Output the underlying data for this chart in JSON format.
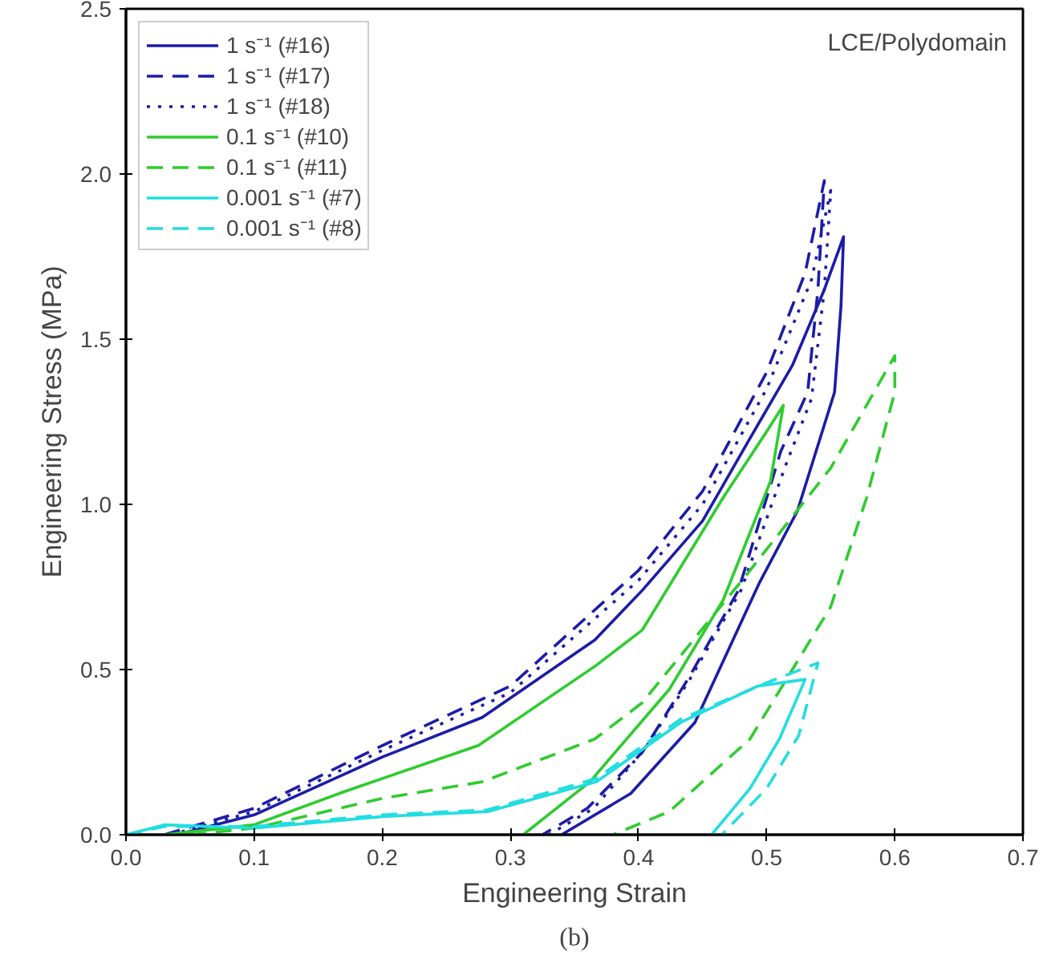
{
  "chart_data": {
    "type": "line",
    "xlabel": "Engineering Strain",
    "ylabel": "Engineering Stress (MPa)",
    "xlim": [
      0,
      0.7
    ],
    "ylim": [
      0,
      2.5
    ],
    "xticks": [
      {
        "value": 0,
        "label": "0.0"
      },
      0.1,
      0.2,
      0.3,
      0.4,
      0.5,
      0.6,
      0.7
    ],
    "yticks": [
      {
        "value": 0,
        "label": "0.0"
      },
      0.5,
      {
        "value": 1,
        "label": "1.0"
      },
      1.5,
      {
        "value": 2,
        "label": "2.0"
      },
      2.5
    ],
    "grid": false,
    "legend": "top left",
    "annotations": [
      "LCE/Polydomain",
      "(b)"
    ],
    "series": [
      {
        "name": "1 s⁻¹ (#16)",
        "color": "#1c1ca8",
        "line_style": "solid",
        "x": [
          0.04,
          0.1,
          0.2,
          0.278,
          0.366,
          0.403,
          0.45,
          0.487,
          0.52,
          0.545,
          0.56,
          0.558,
          0.553,
          0.524,
          0.494,
          0.444,
          0.394,
          0.34
        ],
        "values": [
          0.0,
          0.06,
          0.235,
          0.355,
          0.59,
          0.74,
          0.95,
          1.2,
          1.42,
          1.65,
          1.81,
          1.6,
          1.34,
          0.98,
          0.76,
          0.34,
          0.125,
          0.0
        ]
      },
      {
        "name": "1 s⁻¹ (#17)",
        "color": "#1c1ca8",
        "line_style": "dashed",
        "x": [
          0.03,
          0.1,
          0.2,
          0.3,
          0.4,
          0.45,
          0.5,
          0.53,
          0.545,
          0.54,
          0.532,
          0.511,
          0.478,
          0.44,
          0.403,
          0.36,
          0.325
        ],
        "values": [
          0.0,
          0.08,
          0.27,
          0.45,
          0.8,
          1.04,
          1.4,
          1.7,
          1.98,
          1.65,
          1.34,
          1.16,
          0.74,
          0.48,
          0.25,
          0.08,
          0.0
        ]
      },
      {
        "name": "1 s⁻¹ (#18)",
        "color": "#1c1ca8",
        "line_style": "dotted",
        "x": [
          0.035,
          0.1,
          0.2,
          0.3,
          0.4,
          0.45,
          0.5,
          0.535,
          0.55,
          0.545,
          0.535,
          0.515,
          0.48,
          0.44,
          0.405,
          0.365,
          0.33
        ],
        "values": [
          0.0,
          0.07,
          0.255,
          0.43,
          0.77,
          1.0,
          1.35,
          1.68,
          1.95,
          1.65,
          1.32,
          1.12,
          0.74,
          0.47,
          0.26,
          0.08,
          0.0
        ]
      },
      {
        "name": "0.1 s⁻¹ (#10)",
        "color": "#2ecc2e",
        "line_style": "solid",
        "x": [
          0.03,
          0.1,
          0.17,
          0.275,
          0.366,
          0.403,
          0.466,
          0.5,
          0.513,
          0.503,
          0.466,
          0.424,
          0.362,
          0.31
        ],
        "values": [
          0.0,
          0.03,
          0.13,
          0.27,
          0.51,
          0.62,
          1.02,
          1.22,
          1.3,
          1.07,
          0.71,
          0.44,
          0.16,
          0.0
        ]
      },
      {
        "name": "0.1 s⁻¹ (#11)",
        "color": "#2ecc2e",
        "line_style": "dashed",
        "x": [
          0.05,
          0.1,
          0.2,
          0.278,
          0.366,
          0.403,
          0.487,
          0.55,
          0.6,
          0.6,
          0.578,
          0.55,
          0.487,
          0.424,
          0.38
        ],
        "values": [
          0.0,
          0.02,
          0.11,
          0.16,
          0.29,
          0.4,
          0.8,
          1.11,
          1.45,
          1.34,
          1.02,
          0.69,
          0.29,
          0.07,
          0.0
        ]
      },
      {
        "name": "0.001 s⁻¹ (#7)",
        "color": "#22dde0",
        "line_style": "solid",
        "x": [
          0.0,
          0.03,
          0.1,
          0.2,
          0.282,
          0.367,
          0.433,
          0.493,
          0.53,
          0.51,
          0.487,
          0.457
        ],
        "values": [
          0.0,
          0.03,
          0.02,
          0.055,
          0.07,
          0.16,
          0.34,
          0.45,
          0.47,
          0.29,
          0.14,
          0.0
        ]
      },
      {
        "name": "0.001 s⁻¹ (#8)",
        "color": "#22dde0",
        "line_style": "dashed",
        "x": [
          0.0,
          0.03,
          0.1,
          0.2,
          0.282,
          0.367,
          0.433,
          0.5,
          0.54,
          0.525,
          0.5,
          0.465
        ],
        "values": [
          0.0,
          0.025,
          0.025,
          0.06,
          0.075,
          0.17,
          0.35,
          0.46,
          0.52,
          0.3,
          0.14,
          0.0
        ]
      }
    ]
  }
}
